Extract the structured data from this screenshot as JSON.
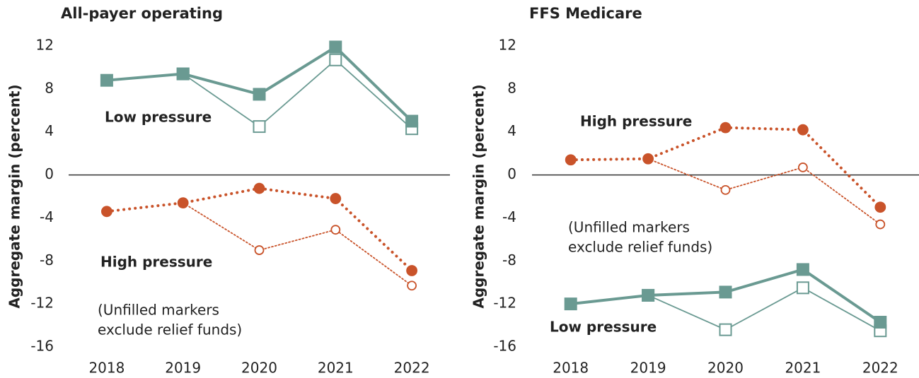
{
  "chart_data": [
    {
      "type": "line",
      "title": "All-payer operating",
      "ylabel": "Aggregate margin (percent)",
      "categories": [
        "2018",
        "2019",
        "2020",
        "2021",
        "2022"
      ],
      "ylim": [
        -16,
        12
      ],
      "yticks": [
        12,
        8,
        4,
        0,
        -4,
        -8,
        -12,
        -16
      ],
      "series": [
        {
          "color": "#6a9a92",
          "marker": "square",
          "filled": false,
          "line_style": "solid",
          "weight": "light",
          "values": [
            null,
            9.4,
            4.5,
            10.7,
            4.3
          ]
        },
        {
          "color": "#c9532a",
          "marker": "circle",
          "filled": false,
          "line_style": "dotted",
          "weight": "light",
          "values": [
            null,
            -2.6,
            -7.0,
            -5.1,
            -10.3
          ]
        },
        {
          "color": "#6a9a92",
          "marker": "square",
          "filled": true,
          "line_style": "solid",
          "weight": "heavy",
          "values": [
            8.8,
            9.4,
            7.5,
            11.9,
            5.0
          ]
        },
        {
          "color": "#c9532a",
          "marker": "circle",
          "filled": true,
          "line_style": "dotted",
          "weight": "heavy",
          "values": [
            -3.4,
            -2.6,
            -1.25,
            -2.2,
            -8.9
          ]
        }
      ],
      "annotations": [
        {
          "lines": [
            "Low pressure"
          ],
          "bold": true
        },
        {
          "lines": [
            "High pressure"
          ],
          "bold": true
        },
        {
          "lines": [
            "(Unfilled markers",
            "exclude relief funds)"
          ],
          "bold": false
        }
      ]
    },
    {
      "type": "line",
      "title": "FFS Medicare",
      "ylabel": "Aggregate margin (percent)",
      "categories": [
        "2018",
        "2019",
        "2020",
        "2021",
        "2022"
      ],
      "ylim": [
        -16,
        12
      ],
      "yticks": [
        12,
        8,
        4,
        0,
        -4,
        -8,
        -12,
        -16
      ],
      "series": [
        {
          "color": "#c9532a",
          "marker": "circle",
          "filled": false,
          "line_style": "dotted",
          "weight": "light",
          "values": [
            null,
            1.5,
            -1.4,
            0.7,
            -4.6
          ]
        },
        {
          "color": "#6a9a92",
          "marker": "square",
          "filled": false,
          "line_style": "solid",
          "weight": "light",
          "values": [
            null,
            -11.2,
            -14.4,
            -10.5,
            -14.5
          ]
        },
        {
          "color": "#c9532a",
          "marker": "circle",
          "filled": true,
          "line_style": "dotted",
          "weight": "heavy",
          "values": [
            1.4,
            1.5,
            4.4,
            4.2,
            -3.0
          ]
        },
        {
          "color": "#6a9a92",
          "marker": "square",
          "filled": true,
          "line_style": "solid",
          "weight": "heavy",
          "values": [
            -12.0,
            -11.2,
            -10.9,
            -8.8,
            -13.7
          ]
        }
      ],
      "annotations": [
        {
          "lines": [
            "High pressure"
          ],
          "bold": true
        },
        {
          "lines": [
            "(Unfilled markers",
            "exclude relief funds)"
          ],
          "bold": false
        },
        {
          "lines": [
            "Low pressure"
          ],
          "bold": true
        }
      ]
    }
  ]
}
